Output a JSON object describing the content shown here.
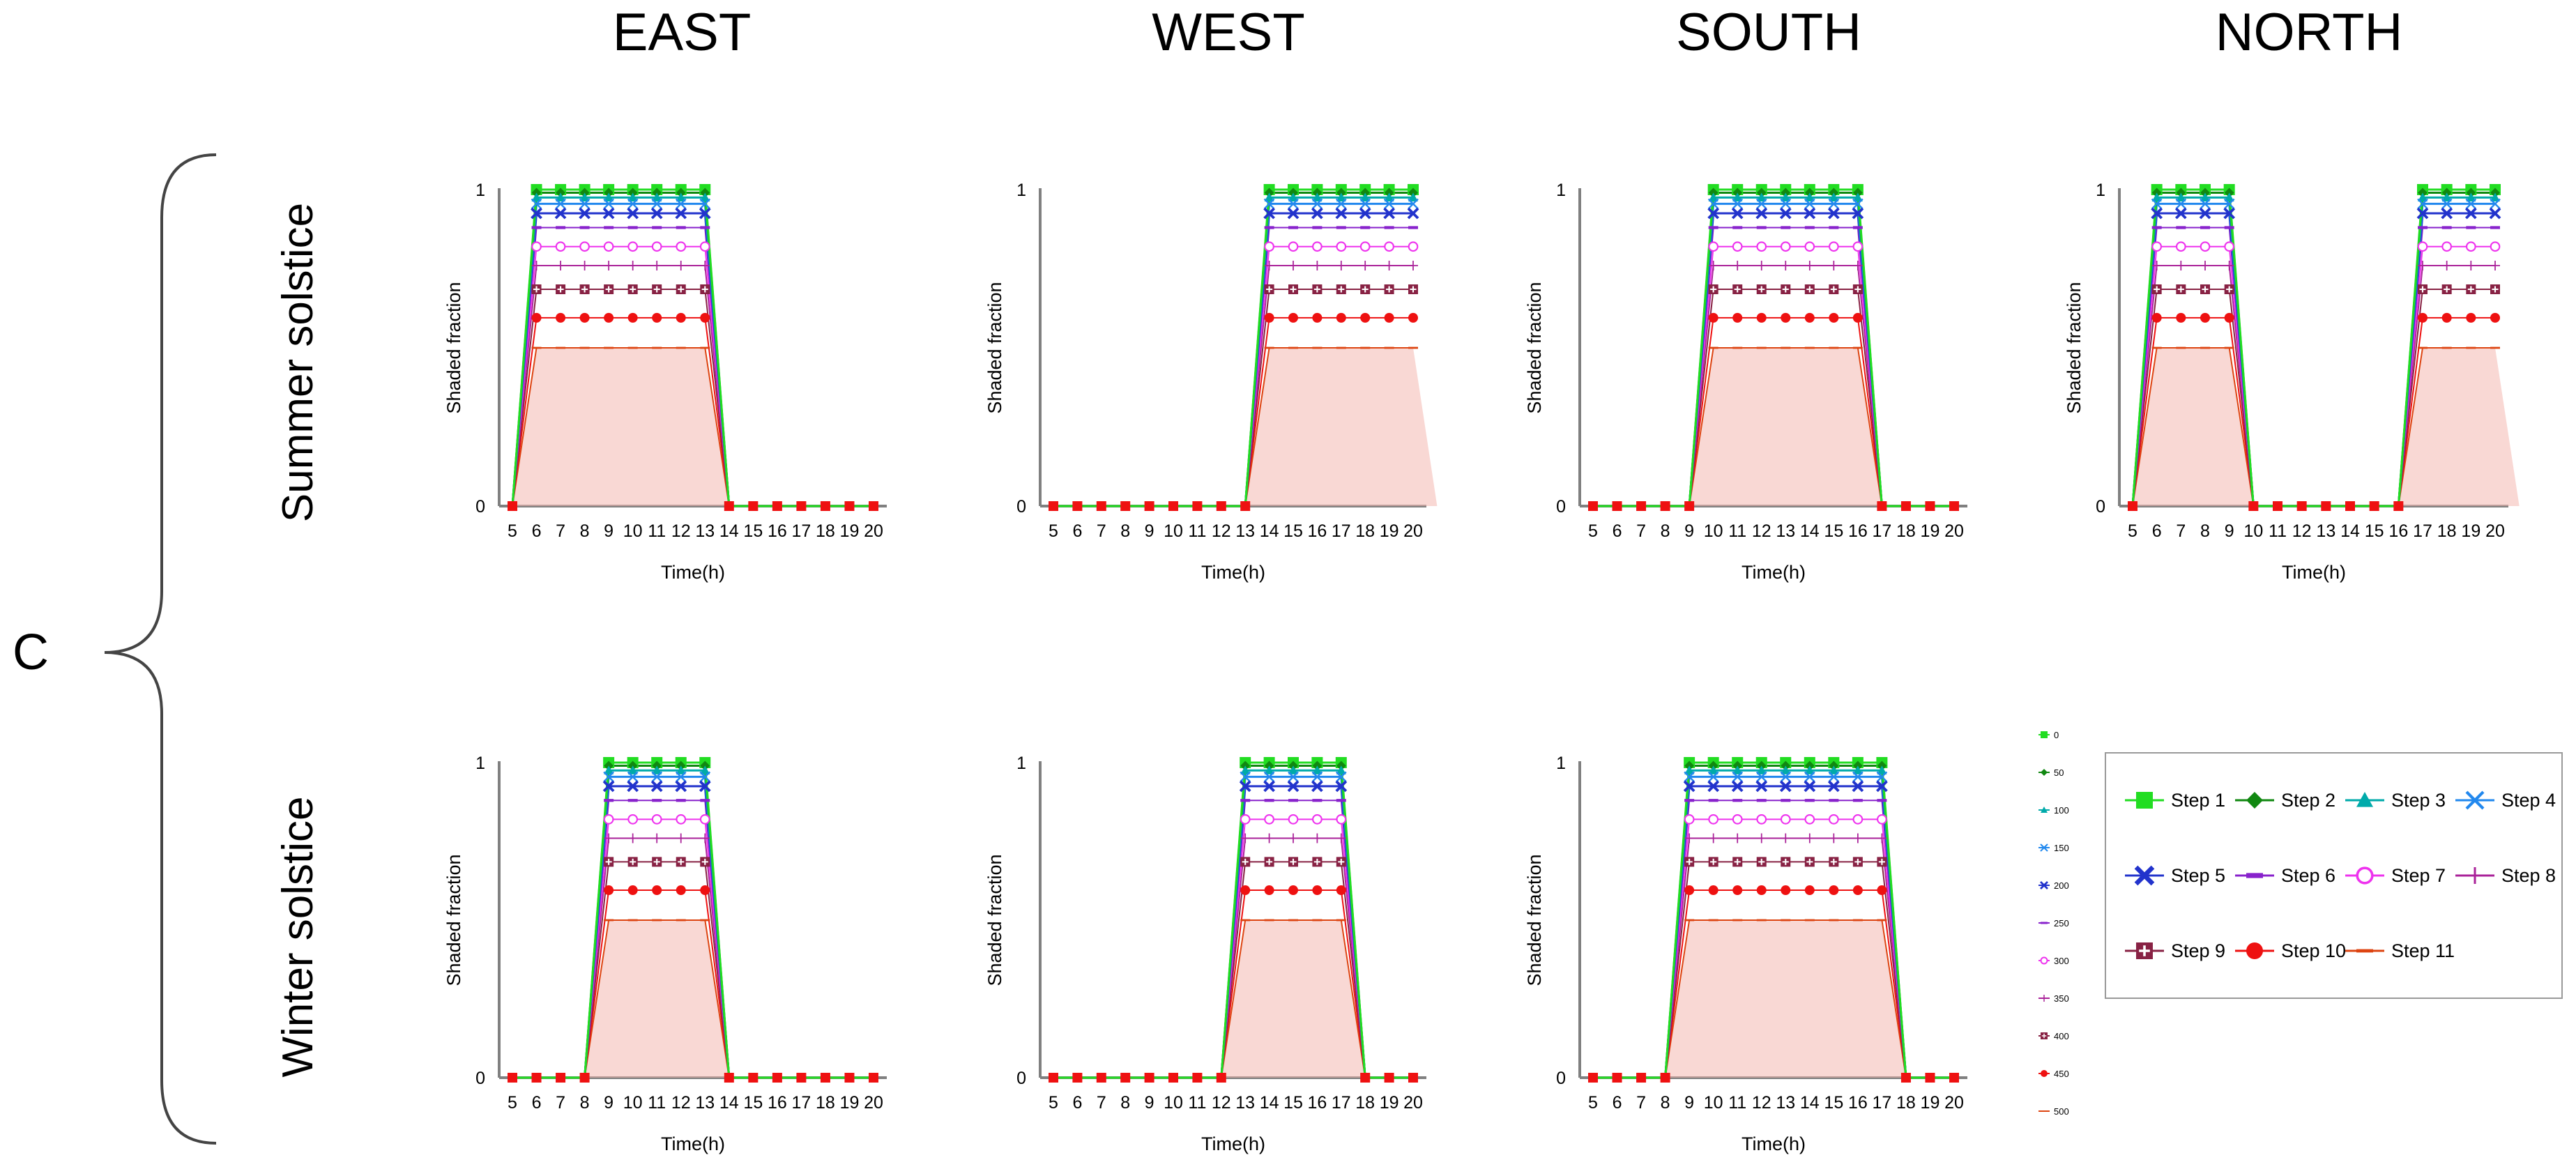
{
  "figure": {
    "panel_label": "C",
    "column_headers": [
      "EAST",
      "WEST",
      "SOUTH",
      "NORTH"
    ],
    "row_labels": [
      "Summer solstice",
      "Winter solstice"
    ]
  },
  "legend": {
    "entries": [
      "Step 1",
      "Step 2",
      "Step 3",
      "Step 4",
      "Step 5",
      "Step 6",
      "Step 7",
      "Step 8",
      "Step 9",
      "Step 10",
      "Step 11"
    ]
  },
  "legend_mini": {
    "entries": [
      "0",
      "50",
      "100",
      "150",
      "200",
      "250",
      "300",
      "350",
      "400",
      "450",
      "500"
    ]
  },
  "colors": {
    "step1": "#22dd22",
    "step2": "#118811",
    "step3": "#00aaaa",
    "step4": "#2288ee",
    "step5": "#2233cc",
    "step6": "#8822cc",
    "step7": "#ee33ee",
    "step8": "#aa2299",
    "step9": "#882244",
    "step10": "#ee1111",
    "step11": "#dd4411",
    "axis": "#808080",
    "fill": "#f4b8b0"
  },
  "chart_data": [
    {
      "type": "line",
      "id": "summer-east",
      "orientation": "East",
      "season": "Summer solstice",
      "xlabel": "Time(h)",
      "ylabel": "Shaded fraction",
      "ylim": [
        0,
        1
      ],
      "yticks": [
        "0",
        "1"
      ],
      "x": [
        5,
        6,
        7,
        8,
        9,
        10,
        11,
        12,
        13,
        14,
        15,
        16,
        17,
        18,
        19,
        20
      ],
      "shaded_hours": [
        6,
        13
      ],
      "series": [
        {
          "name": "Step 1",
          "plateau": 1.0
        },
        {
          "name": "Step 2",
          "plateau": 0.99
        },
        {
          "name": "Step 3",
          "plateau": 0.975
        },
        {
          "name": "Step 4",
          "plateau": 0.955
        },
        {
          "name": "Step 5",
          "plateau": 0.925
        },
        {
          "name": "Step 6",
          "plateau": 0.88
        },
        {
          "name": "Step 7",
          "plateau": 0.82
        },
        {
          "name": "Step 8",
          "plateau": 0.76
        },
        {
          "name": "Step 9",
          "plateau": 0.685
        },
        {
          "name": "Step 10",
          "plateau": 0.595
        },
        {
          "name": "Step 11",
          "plateau": 0.5
        }
      ]
    },
    {
      "type": "line",
      "id": "summer-west",
      "orientation": "West",
      "season": "Summer solstice",
      "xlabel": "Time(h)",
      "ylabel": "Shaded fraction",
      "ylim": [
        0,
        1
      ],
      "yticks": [
        "0",
        "1"
      ],
      "x": [
        5,
        6,
        7,
        8,
        9,
        10,
        11,
        12,
        13,
        14,
        15,
        16,
        17,
        18,
        19,
        20
      ],
      "shaded_hours": [
        14,
        20
      ],
      "series": [
        {
          "name": "Step 1",
          "plateau": 1.0
        },
        {
          "name": "Step 2",
          "plateau": 0.99
        },
        {
          "name": "Step 3",
          "plateau": 0.975
        },
        {
          "name": "Step 4",
          "plateau": 0.955
        },
        {
          "name": "Step 5",
          "plateau": 0.925
        },
        {
          "name": "Step 6",
          "plateau": 0.88
        },
        {
          "name": "Step 7",
          "plateau": 0.82
        },
        {
          "name": "Step 8",
          "plateau": 0.76
        },
        {
          "name": "Step 9",
          "plateau": 0.685
        },
        {
          "name": "Step 10",
          "plateau": 0.595
        },
        {
          "name": "Step 11",
          "plateau": 0.5
        }
      ]
    },
    {
      "type": "line",
      "id": "summer-south",
      "orientation": "South",
      "season": "Summer solstice",
      "xlabel": "Time(h)",
      "ylabel": "Shaded fraction",
      "ylim": [
        0,
        1
      ],
      "yticks": [
        "0",
        "1"
      ],
      "x": [
        5,
        6,
        7,
        8,
        9,
        10,
        11,
        12,
        13,
        14,
        15,
        16,
        17,
        18,
        19,
        20
      ],
      "shaded_hours": [
        10,
        16
      ],
      "series": [
        {
          "name": "Step 1",
          "plateau": 1.0
        },
        {
          "name": "Step 2",
          "plateau": 0.99
        },
        {
          "name": "Step 3",
          "plateau": 0.975
        },
        {
          "name": "Step 4",
          "plateau": 0.955
        },
        {
          "name": "Step 5",
          "plateau": 0.925
        },
        {
          "name": "Step 6",
          "plateau": 0.88
        },
        {
          "name": "Step 7",
          "plateau": 0.82
        },
        {
          "name": "Step 8",
          "plateau": 0.76
        },
        {
          "name": "Step 9",
          "plateau": 0.685
        },
        {
          "name": "Step 10",
          "plateau": 0.595
        },
        {
          "name": "Step 11",
          "plateau": 0.5
        }
      ]
    },
    {
      "type": "line",
      "id": "summer-north",
      "orientation": "North",
      "season": "Summer solstice",
      "xlabel": "Time(h)",
      "ylabel": "Shaded fraction",
      "ylim": [
        0,
        1
      ],
      "yticks": [
        "0",
        "1"
      ],
      "x": [
        5,
        6,
        7,
        8,
        9,
        10,
        11,
        12,
        13,
        14,
        15,
        16,
        17,
        18,
        19,
        20
      ],
      "shaded_hours": [
        6,
        9
      ],
      "shaded_hours_2": [
        17,
        20
      ],
      "series": [
        {
          "name": "Step 1",
          "plateau": 1.0
        },
        {
          "name": "Step 2",
          "plateau": 0.99
        },
        {
          "name": "Step 3",
          "plateau": 0.975
        },
        {
          "name": "Step 4",
          "plateau": 0.955
        },
        {
          "name": "Step 5",
          "plateau": 0.925
        },
        {
          "name": "Step 6",
          "plateau": 0.88
        },
        {
          "name": "Step 7",
          "plateau": 0.82
        },
        {
          "name": "Step 8",
          "plateau": 0.76
        },
        {
          "name": "Step 9",
          "plateau": 0.685
        },
        {
          "name": "Step 10",
          "plateau": 0.595
        },
        {
          "name": "Step 11",
          "plateau": 0.5
        }
      ]
    },
    {
      "type": "line",
      "id": "winter-east",
      "orientation": "East",
      "season": "Winter solstice",
      "xlabel": "Time(h)",
      "ylabel": "Shaded fraction",
      "ylim": [
        0,
        1
      ],
      "yticks": [
        "0",
        "1"
      ],
      "x": [
        5,
        6,
        7,
        8,
        9,
        10,
        11,
        12,
        13,
        14,
        15,
        16,
        17,
        18,
        19,
        20
      ],
      "shaded_hours": [
        9,
        13
      ],
      "series": [
        {
          "name": "Step 1",
          "plateau": 1.0
        },
        {
          "name": "Step 2",
          "plateau": 0.99
        },
        {
          "name": "Step 3",
          "plateau": 0.975
        },
        {
          "name": "Step 4",
          "plateau": 0.955
        },
        {
          "name": "Step 5",
          "plateau": 0.925
        },
        {
          "name": "Step 6",
          "plateau": 0.88
        },
        {
          "name": "Step 7",
          "plateau": 0.82
        },
        {
          "name": "Step 8",
          "plateau": 0.76
        },
        {
          "name": "Step 9",
          "plateau": 0.685
        },
        {
          "name": "Step 10",
          "plateau": 0.595
        },
        {
          "name": "Step 11",
          "plateau": 0.5
        }
      ]
    },
    {
      "type": "line",
      "id": "winter-west",
      "orientation": "West",
      "season": "Winter solstice",
      "xlabel": "Time(h)",
      "ylabel": "Shaded fraction",
      "ylim": [
        0,
        1
      ],
      "yticks": [
        "0",
        "1"
      ],
      "x": [
        5,
        6,
        7,
        8,
        9,
        10,
        11,
        12,
        13,
        14,
        15,
        16,
        17,
        18,
        19,
        20
      ],
      "shaded_hours": [
        13,
        17
      ],
      "series": [
        {
          "name": "Step 1",
          "plateau": 1.0
        },
        {
          "name": "Step 2",
          "plateau": 0.99
        },
        {
          "name": "Step 3",
          "plateau": 0.975
        },
        {
          "name": "Step 4",
          "plateau": 0.955
        },
        {
          "name": "Step 5",
          "plateau": 0.925
        },
        {
          "name": "Step 6",
          "plateau": 0.88
        },
        {
          "name": "Step 7",
          "plateau": 0.82
        },
        {
          "name": "Step 8",
          "plateau": 0.76
        },
        {
          "name": "Step 9",
          "plateau": 0.685
        },
        {
          "name": "Step 10",
          "plateau": 0.595
        },
        {
          "name": "Step 11",
          "plateau": 0.5
        }
      ]
    },
    {
      "type": "line",
      "id": "winter-south",
      "orientation": "South",
      "season": "Winter solstice",
      "xlabel": "Time(h)",
      "ylabel": "Shaded fraction",
      "ylim": [
        0,
        1
      ],
      "yticks": [
        "0",
        "1"
      ],
      "x": [
        5,
        6,
        7,
        8,
        9,
        10,
        11,
        12,
        13,
        14,
        15,
        16,
        17,
        18,
        19,
        20
      ],
      "shaded_hours": [
        9,
        17
      ],
      "series": [
        {
          "name": "Step 1",
          "plateau": 1.0
        },
        {
          "name": "Step 2",
          "plateau": 0.99
        },
        {
          "name": "Step 3",
          "plateau": 0.975
        },
        {
          "name": "Step 4",
          "plateau": 0.955
        },
        {
          "name": "Step 5",
          "plateau": 0.925
        },
        {
          "name": "Step 6",
          "plateau": 0.88
        },
        {
          "name": "Step 7",
          "plateau": 0.82
        },
        {
          "name": "Step 8",
          "plateau": 0.76
        },
        {
          "name": "Step 9",
          "plateau": 0.685
        },
        {
          "name": "Step 10",
          "plateau": 0.595
        },
        {
          "name": "Step 11",
          "plateau": 0.5
        }
      ]
    }
  ]
}
